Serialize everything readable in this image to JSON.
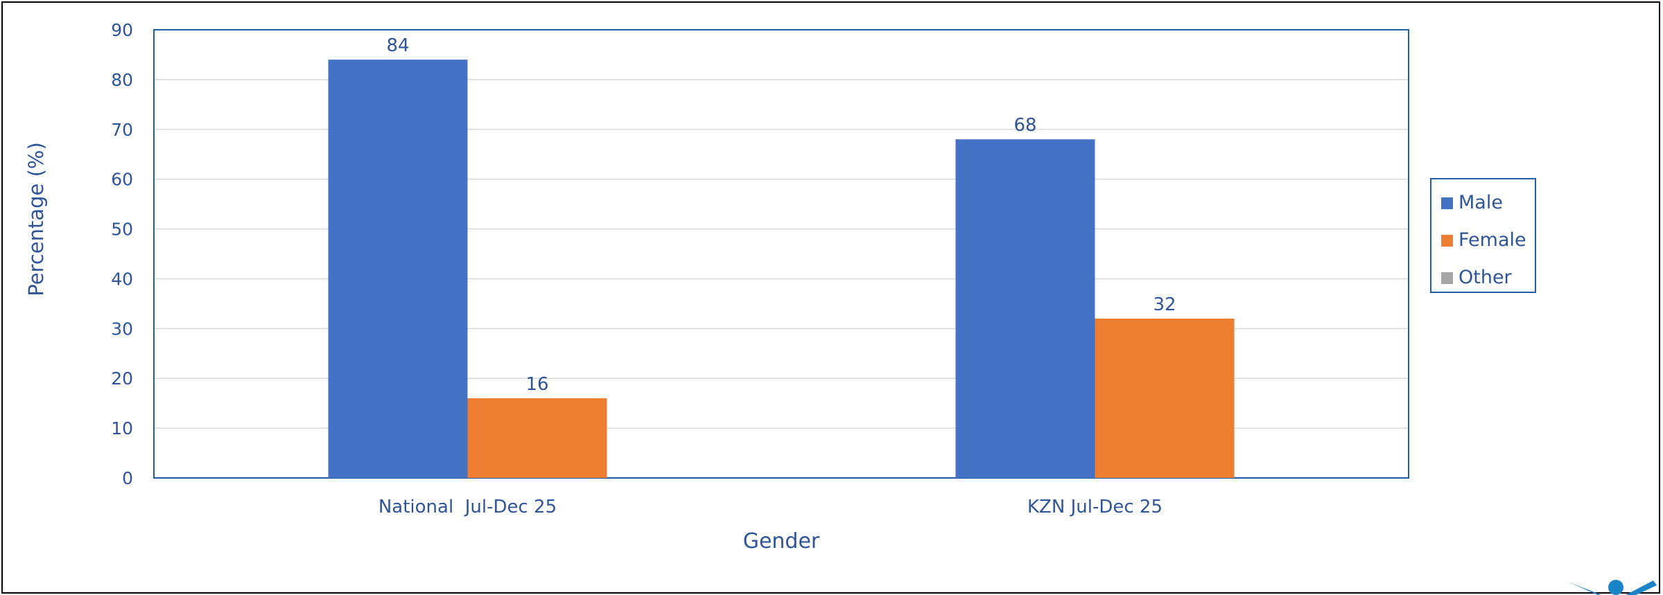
{
  "chart_data": {
    "type": "bar",
    "title": "",
    "xlabel": "Gender",
    "ylabel": "Percentage (%)",
    "categories": [
      "National  Jul-Dec 25",
      "KZN Jul-Dec 25"
    ],
    "series": [
      {
        "name": "Male",
        "values": [
          84,
          68
        ],
        "color": "#4472C4"
      },
      {
        "name": "Female",
        "values": [
          16,
          32
        ],
        "color": "#ED7D31"
      },
      {
        "name": "Other",
        "values": [
          null,
          null
        ],
        "color": "#A5A5A5"
      }
    ],
    "ylim": [
      0,
      90
    ],
    "yticks": [
      0,
      10,
      20,
      30,
      40,
      50,
      60,
      70,
      80,
      90
    ],
    "grid": true,
    "legend": "right",
    "text_color": "#2F5597",
    "grid_color": "#D9D9D9",
    "axis_color": "#1F5FA8"
  },
  "decor": {
    "logo_icon": "figure-logo-icon",
    "logo_color": "#1A84C7"
  }
}
